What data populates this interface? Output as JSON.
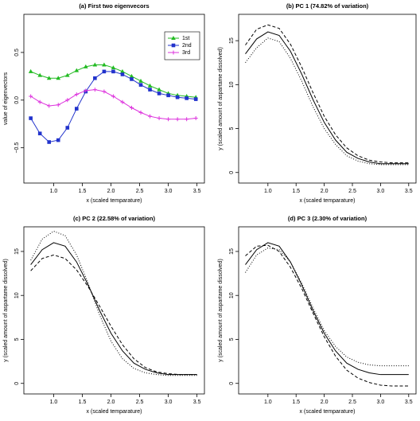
{
  "chart_data": [
    {
      "type": "line",
      "title": "(a)  First two eigenvecors",
      "x_label": "x (scaled temparature)",
      "y_label": "value of eigenvectors",
      "x": [
        0.6,
        0.76,
        0.92,
        1.08,
        1.24,
        1.4,
        1.56,
        1.72,
        1.88,
        2.04,
        2.2,
        2.36,
        2.52,
        2.68,
        2.84,
        3.0,
        3.16,
        3.32,
        3.48
      ],
      "series": [
        {
          "name": "1st",
          "color": "#22bb22",
          "marker": "triangle",
          "values": [
            0.3,
            0.26,
            0.23,
            0.23,
            0.26,
            0.31,
            0.35,
            0.37,
            0.37,
            0.34,
            0.3,
            0.25,
            0.2,
            0.15,
            0.11,
            0.07,
            0.05,
            0.04,
            0.03
          ]
        },
        {
          "name": "2nd",
          "color": "#2233cc",
          "marker": "square",
          "values": [
            -0.19,
            -0.35,
            -0.44,
            -0.42,
            -0.29,
            -0.09,
            0.09,
            0.23,
            0.3,
            0.3,
            0.27,
            0.22,
            0.16,
            0.11,
            0.07,
            0.05,
            0.03,
            0.02,
            0.01
          ]
        },
        {
          "name": "3rd",
          "color": "#dd33dd",
          "marker": "plus",
          "values": [
            0.04,
            -0.02,
            -0.06,
            -0.05,
            0.0,
            0.06,
            0.1,
            0.11,
            0.09,
            0.04,
            -0.02,
            -0.08,
            -0.13,
            -0.17,
            -0.19,
            -0.2,
            -0.2,
            -0.2,
            -0.19
          ]
        }
      ],
      "xlim": [
        0.48,
        3.63
      ],
      "ylim": [
        -0.87,
        0.9
      ],
      "xticks": [
        {
          "value": 1,
          "label": "1.0"
        },
        1.5,
        {
          "value": 2,
          "label": "2.0"
        },
        2.5,
        {
          "value": 3,
          "label": "3.0"
        },
        3.5
      ],
      "yticks": [
        {
          "value": -0.5,
          "label": "−0.5"
        },
        {
          "value": 0,
          "label": "0.0"
        },
        0.5
      ],
      "legend": "topright"
    },
    {
      "type": "line",
      "title": "(b)  PC 1 (74.82% of variation)",
      "x_label": "x (scaled temparature)",
      "y_label": "y (scaled amount of aspartame dissolved)",
      "x": [
        0.6,
        0.8,
        1.0,
        1.2,
        1.4,
        1.6,
        1.8,
        2.0,
        2.2,
        2.4,
        2.6,
        2.8,
        3.0,
        3.2,
        3.4,
        3.5
      ],
      "series": [
        {
          "color": "#000000",
          "linestyle": "solid",
          "values": [
            13.5,
            15.2,
            16.0,
            15.6,
            13.8,
            11.2,
            8.3,
            5.7,
            3.7,
            2.3,
            1.6,
            1.2,
            1.0,
            1.0,
            1.0,
            1.0
          ]
        },
        {
          "color": "#000000",
          "linestyle": "dashed",
          "values": [
            14.5,
            16.3,
            16.8,
            16.4,
            14.6,
            12.0,
            9.1,
            6.4,
            4.3,
            2.8,
            1.9,
            1.4,
            1.2,
            1.1,
            1.1,
            1.1
          ]
        },
        {
          "color": "#000000",
          "linestyle": "dotted",
          "values": [
            12.5,
            14.2,
            15.3,
            14.9,
            13.0,
            10.4,
            7.5,
            5.0,
            3.2,
            1.9,
            1.3,
            1.0,
            0.9,
            0.9,
            0.9,
            0.9
          ]
        }
      ],
      "xlim": [
        0.48,
        3.63
      ],
      "ylim": [
        -1.2,
        18
      ],
      "xticks": [
        {
          "value": 1,
          "label": "1.0"
        },
        1.5,
        {
          "value": 2,
          "label": "2.0"
        },
        2.5,
        {
          "value": 3,
          "label": "3.0"
        },
        3.5
      ],
      "yticks": [
        0,
        5,
        10,
        15
      ]
    },
    {
      "type": "line",
      "title": "(c)  PC 2 (22.58% of variation)",
      "x_label": "x (scaled temparature)",
      "y_label": "y (scaled amount of aspartame dissolved)",
      "x": [
        0.6,
        0.8,
        1.0,
        1.2,
        1.4,
        1.6,
        1.8,
        2.0,
        2.2,
        2.4,
        2.6,
        2.8,
        3.0,
        3.2,
        3.4,
        3.5
      ],
      "series": [
        {
          "color": "#000000",
          "linestyle": "solid",
          "values": [
            13.5,
            15.2,
            16.0,
            15.6,
            13.8,
            11.2,
            8.3,
            5.7,
            3.7,
            2.3,
            1.6,
            1.2,
            1.0,
            1.0,
            1.0,
            1.0
          ]
        },
        {
          "color": "#000000",
          "linestyle": "dashed",
          "values": [
            12.8,
            14.2,
            14.6,
            14.2,
            12.9,
            11.0,
            8.8,
            6.5,
            4.4,
            2.8,
            1.8,
            1.3,
            1.1,
            1.0,
            1.0,
            1.0
          ]
        },
        {
          "color": "#000000",
          "linestyle": "dotted",
          "values": [
            14.0,
            16.4,
            17.3,
            16.8,
            14.6,
            11.4,
            7.8,
            4.8,
            2.8,
            1.7,
            1.2,
            1.0,
            0.9,
            0.9,
            0.9,
            0.9
          ]
        }
      ],
      "xlim": [
        0.48,
        3.63
      ],
      "ylim": [
        -1.2,
        17.8
      ],
      "xticks": [
        {
          "value": 1,
          "label": "1.0"
        },
        1.5,
        {
          "value": 2,
          "label": "2.0"
        },
        2.5,
        {
          "value": 3,
          "label": "3.0"
        },
        3.5
      ],
      "yticks": [
        0,
        5,
        10,
        15
      ]
    },
    {
      "type": "line",
      "title": "(d)  PC 3 (2.30% of variation)",
      "x_label": "x (scaled temparature)",
      "y_label": "y (scaled amount of aspartame dissolved)",
      "x": [
        0.6,
        0.8,
        1.0,
        1.2,
        1.4,
        1.6,
        1.8,
        2.0,
        2.2,
        2.4,
        2.6,
        2.8,
        3.0,
        3.2,
        3.4,
        3.5
      ],
      "series": [
        {
          "color": "#000000",
          "linestyle": "solid",
          "values": [
            13.5,
            15.2,
            16.0,
            15.6,
            13.8,
            11.2,
            8.3,
            5.7,
            3.7,
            2.3,
            1.6,
            1.2,
            1.0,
            1.0,
            1.0,
            1.0
          ]
        },
        {
          "color": "#000000",
          "linestyle": "dashed",
          "values": [
            14.5,
            15.6,
            15.7,
            15.0,
            13.2,
            10.8,
            8.0,
            5.3,
            3.1,
            1.5,
            0.6,
            0.1,
            -0.2,
            -0.3,
            -0.3,
            -0.3
          ]
        },
        {
          "color": "#000000",
          "linestyle": "dotted",
          "values": [
            12.6,
            14.6,
            15.4,
            15.2,
            13.8,
            11.4,
            8.6,
            6.0,
            4.2,
            3.0,
            2.4,
            2.1,
            2.0,
            2.0,
            2.0,
            2.0
          ]
        }
      ],
      "xlim": [
        0.48,
        3.63
      ],
      "ylim": [
        -1.2,
        17.8
      ],
      "xticks": [
        {
          "value": 1,
          "label": "1.0"
        },
        1.5,
        {
          "value": 2,
          "label": "2.0"
        },
        2.5,
        {
          "value": 3,
          "label": "3.0"
        },
        3.5
      ],
      "yticks": [
        0,
        5,
        10,
        15
      ]
    }
  ]
}
